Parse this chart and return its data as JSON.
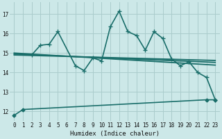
{
  "bg_color": "#cce8e8",
  "grid_color": "#aacccc",
  "line_color": "#1a6e6a",
  "xlabel": "Humidex (Indice chaleur)",
  "xlim": [
    -0.5,
    23.5
  ],
  "ylim": [
    11.5,
    17.6
  ],
  "yticks": [
    12,
    13,
    14,
    15,
    16,
    17
  ],
  "xticks": [
    0,
    1,
    2,
    3,
    4,
    5,
    6,
    7,
    8,
    9,
    10,
    11,
    12,
    13,
    14,
    15,
    16,
    17,
    18,
    19,
    20,
    21,
    22,
    23
  ],
  "line_bottom": {
    "x": [
      0,
      1,
      22,
      23
    ],
    "y": [
      11.8,
      12.1,
      12.6,
      12.6
    ],
    "marker": "D",
    "markersize": 2.5
  },
  "line_jagged": {
    "x": [
      2,
      3,
      4,
      5,
      7,
      8,
      9,
      10,
      11,
      12,
      13,
      14,
      15,
      16,
      17,
      18,
      19,
      20,
      21,
      22,
      23
    ],
    "y": [
      14.9,
      15.4,
      15.45,
      16.1,
      14.35,
      14.1,
      14.75,
      14.6,
      16.35,
      17.15,
      16.1,
      15.9,
      15.15,
      16.1,
      15.75,
      14.7,
      14.35,
      14.55,
      14.0,
      13.75,
      12.6
    ],
    "marker": "+",
    "markersize": 4
  },
  "reg_lines": [
    {
      "x": [
        0,
        23
      ],
      "y": [
        15.0,
        14.38
      ]
    },
    {
      "x": [
        0,
        23
      ],
      "y": [
        14.95,
        14.52
      ]
    },
    {
      "x": [
        0,
        23
      ],
      "y": [
        14.9,
        14.62
      ]
    }
  ]
}
